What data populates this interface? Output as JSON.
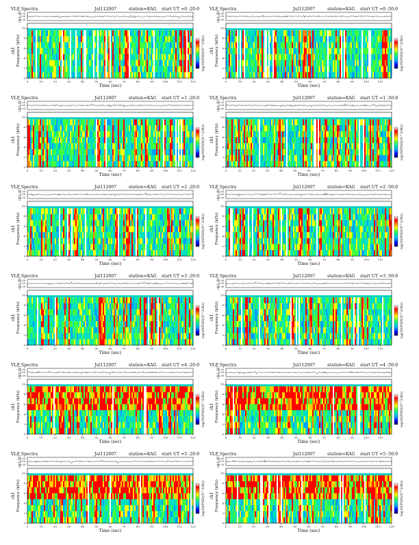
{
  "page": {
    "background": "#ffffff"
  },
  "panels": [
    {
      "title": "VLF Spectra",
      "date": "Jul112007",
      "station": "station=KAG",
      "start": "start  UT =0 :20:0",
      "xmax": 120,
      "xticks": [
        0,
        10,
        20,
        30,
        40,
        50,
        60,
        70,
        80,
        90,
        100,
        110,
        120
      ]
    },
    {
      "title": "VLF Spectra",
      "date": "Jul112007",
      "station": "station=KAG",
      "start": "start  UT =0 :50:0",
      "xmax": 118,
      "xticks": [
        0,
        10,
        20,
        30,
        40,
        50,
        60,
        70,
        80,
        90,
        100,
        110
      ]
    },
    {
      "title": "VLF Spectra",
      "date": "Jul112007",
      "station": "station=KAG",
      "start": "start  UT =1 :20:0",
      "xmax": 120,
      "xticks": [
        0,
        10,
        20,
        30,
        40,
        50,
        60,
        70,
        80,
        90,
        100,
        110,
        120
      ]
    },
    {
      "title": "VLF Spectra",
      "date": "Jul112007",
      "station": "station=KAG",
      "start": "start  UT =1 :50:0",
      "xmax": 120,
      "xticks": [
        0,
        10,
        20,
        30,
        40,
        50,
        60,
        70,
        80,
        90,
        100,
        110,
        120
      ]
    },
    {
      "title": "VLF Spectra",
      "date": "Jul112007",
      "station": "station=KAG",
      "start": "start  UT =2 :20:0",
      "xmax": 120,
      "xticks": [
        0,
        10,
        20,
        30,
        40,
        50,
        60,
        70,
        80,
        90,
        100,
        110,
        120
      ]
    },
    {
      "title": "VLF Spectra",
      "date": "Jul112007",
      "station": "station=KAG",
      "start": "start  UT =2 :50:0",
      "xmax": 118,
      "xticks": [
        0,
        10,
        20,
        30,
        40,
        50,
        60,
        70,
        80,
        90,
        100,
        110
      ]
    },
    {
      "title": "VLF Spectra",
      "date": "Jul112007",
      "station": "station=KAG",
      "start": "start  UT =3 :20:0",
      "xmax": 120,
      "xticks": [
        0,
        10,
        20,
        30,
        40,
        50,
        60,
        70,
        80,
        90,
        100,
        110,
        120
      ]
    },
    {
      "title": "VLF Spectra",
      "date": "Jul112007",
      "station": "station=KAG",
      "start": "start  UT =3 :50:0",
      "xmax": 118,
      "xticks": [
        0,
        10,
        20,
        30,
        40,
        50,
        60,
        70,
        80,
        90,
        100,
        110
      ]
    },
    {
      "title": "VLF Spectra",
      "date": "Jul112007",
      "station": "station=KAG",
      "start": "start  UT =4 :20:0",
      "xmax": 120,
      "xticks": [
        0,
        10,
        20,
        30,
        40,
        50,
        60,
        70,
        80,
        90,
        100,
        110,
        120
      ]
    },
    {
      "title": "VLF Spectra",
      "date": "Jul112007",
      "station": "station=KAG",
      "start": "start  UT =4 :50:0",
      "xmax": 118,
      "xticks": [
        0,
        10,
        20,
        30,
        40,
        50,
        60,
        70,
        80,
        90,
        100,
        110
      ]
    },
    {
      "title": "VLF Spectra",
      "date": "Jul112007",
      "station": "station=KAG",
      "start": "start  UT =5 :20:0",
      "xmax": 120,
      "xticks": [
        0,
        10,
        20,
        30,
        40,
        50,
        60,
        70,
        80,
        90,
        100,
        110,
        120
      ]
    },
    {
      "title": "VLF Spectra",
      "date": "Jul112007",
      "station": "station=KAG",
      "start": "start  UT =5 :50:0",
      "xmax": 120,
      "xticks": [
        0,
        10,
        20,
        30,
        40,
        50,
        60,
        70,
        80,
        90,
        100,
        110,
        120
      ]
    }
  ],
  "chart_data": {
    "type": "heatmap",
    "xlabel": "Time  (sec)",
    "ylabel": "Frequency  (kHz)",
    "channel_label": "ch1",
    "waveform_ylabel": "ch1 (V)",
    "waveform_ticks": [
      "0.30",
      "0.00",
      "-0.30"
    ],
    "waveform_ylim": [
      -0.3,
      0.3
    ],
    "yticks": [
      0,
      2,
      4,
      6,
      8,
      10
    ],
    "ylim": [
      0,
      11
    ],
    "colorbar_label": "log10(PSD)(V^2/Hz)",
    "colorbar_colors": [
      "#000060",
      "#0000ff",
      "#00a0ff",
      "#00e0c0",
      "#40ff40",
      "#ffff00",
      "#ff8000",
      "#ff0000",
      "#ffffff"
    ],
    "grid": false
  }
}
